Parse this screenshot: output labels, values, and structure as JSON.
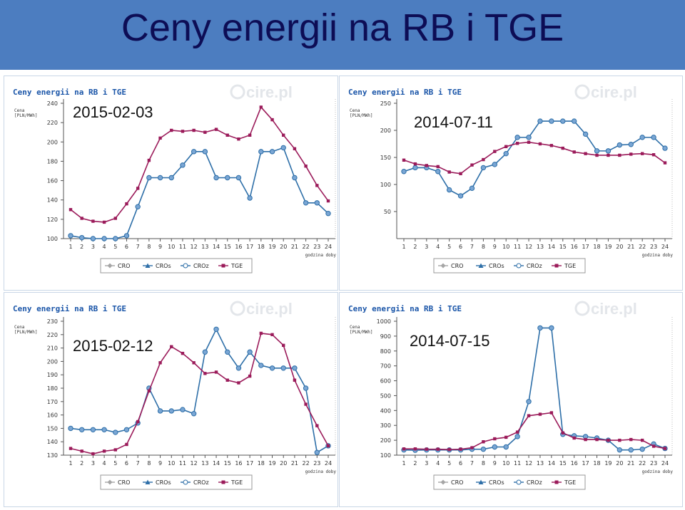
{
  "slide": {
    "title": "Ceny energii na RB i TGE",
    "header_color": "#4c7dc0"
  },
  "chart_common": {
    "chart_title": "Ceny energii na RB i TGE",
    "ylabel_line1": "Cena",
    "ylabel_line2": "[PLN/MWh]",
    "xlabel": "godzina doby",
    "watermark": "cire.pl",
    "x_hours": [
      1,
      2,
      3,
      4,
      5,
      6,
      7,
      8,
      9,
      10,
      11,
      12,
      13,
      14,
      15,
      16,
      17,
      18,
      19,
      20,
      21,
      22,
      23,
      24
    ],
    "legend": [
      "CRO",
      "CROs",
      "CROz",
      "TGE"
    ],
    "colors": {
      "CRO": "#a6a6a6",
      "CROs": "#2e6fa8",
      "CROz": "#2e6fa8",
      "TGE": "#9b1b5a",
      "title": "#1a55a8"
    }
  },
  "chart_data": [
    {
      "type": "line",
      "date_label": "2015-02-03",
      "x": [
        1,
        2,
        3,
        4,
        5,
        6,
        7,
        8,
        9,
        10,
        11,
        12,
        13,
        14,
        15,
        16,
        17,
        18,
        19,
        20,
        21,
        22,
        23,
        24
      ],
      "yticks": [
        100,
        120,
        140,
        160,
        180,
        200,
        220,
        240
      ],
      "ylim": [
        100,
        240
      ],
      "series": [
        {
          "name": "CROs",
          "values": [
            103,
            101,
            100,
            100,
            100,
            103,
            133,
            163,
            163,
            163,
            176,
            190,
            190,
            163,
            163,
            163,
            142,
            190,
            190,
            194,
            163,
            137,
            137,
            126
          ]
        },
        {
          "name": "TGE",
          "values": [
            130,
            121,
            118,
            117,
            121,
            136,
            152,
            181,
            204,
            212,
            211,
            212,
            210,
            213,
            207,
            203,
            207,
            236,
            223,
            207,
            193,
            175,
            155,
            139
          ]
        }
      ]
    },
    {
      "type": "line",
      "date_label": "2014-07-11",
      "x": [
        1,
        2,
        3,
        4,
        5,
        6,
        7,
        8,
        9,
        10,
        11,
        12,
        13,
        14,
        15,
        16,
        17,
        18,
        19,
        20,
        21,
        22,
        23,
        24
      ],
      "yticks": [
        50,
        100,
        150,
        200,
        250
      ],
      "ylim": [
        0,
        250
      ],
      "series": [
        {
          "name": "CROs",
          "values": [
            124,
            131,
            131,
            124,
            90,
            79,
            93,
            131,
            137,
            157,
            187,
            187,
            217,
            217,
            217,
            217,
            193,
            162,
            162,
            173,
            174,
            187,
            187,
            167
          ]
        },
        {
          "name": "TGE",
          "values": [
            145,
            138,
            135,
            133,
            123,
            120,
            136,
            146,
            161,
            170,
            176,
            178,
            175,
            172,
            167,
            160,
            157,
            154,
            154,
            154,
            156,
            157,
            155,
            140
          ]
        }
      ]
    },
    {
      "type": "line",
      "date_label": "2015-02-12",
      "x": [
        1,
        2,
        3,
        4,
        5,
        6,
        7,
        8,
        9,
        10,
        11,
        12,
        13,
        14,
        15,
        16,
        17,
        18,
        19,
        20,
        21,
        22,
        23,
        24
      ],
      "yticks": [
        130,
        140,
        150,
        160,
        170,
        180,
        190,
        200,
        210,
        220,
        230
      ],
      "ylim": [
        130,
        230
      ],
      "series": [
        {
          "name": "CROs",
          "values": [
            150,
            149,
            149,
            149,
            147,
            149,
            154,
            180,
            163,
            163,
            164,
            161,
            207,
            224,
            207,
            195,
            207,
            197,
            195,
            195,
            195,
            180,
            132,
            137
          ]
        },
        {
          "name": "TGE",
          "values": [
            135,
            133,
            131,
            133,
            134,
            138,
            155,
            178,
            199,
            211,
            206,
            199,
            191,
            192,
            186,
            184,
            189,
            221,
            220,
            212,
            186,
            168,
            152,
            137
          ]
        }
      ]
    },
    {
      "type": "line",
      "date_label": "2014-07-15",
      "x": [
        1,
        2,
        3,
        4,
        5,
        6,
        7,
        8,
        9,
        10,
        11,
        12,
        13,
        14,
        15,
        16,
        17,
        18,
        19,
        20,
        21,
        22,
        23,
        24
      ],
      "yticks": [
        100,
        200,
        300,
        400,
        500,
        600,
        700,
        800,
        900,
        1000
      ],
      "ylim": [
        100,
        1000
      ],
      "series": [
        {
          "name": "CROs",
          "values": [
            135,
            133,
            135,
            135,
            135,
            135,
            140,
            140,
            155,
            155,
            225,
            460,
            955,
            955,
            240,
            230,
            225,
            215,
            200,
            135,
            135,
            140,
            175,
            145
          ]
        },
        {
          "name": "TGE",
          "values": [
            142,
            142,
            140,
            140,
            138,
            140,
            150,
            190,
            210,
            220,
            255,
            365,
            375,
            385,
            250,
            215,
            205,
            205,
            200,
            200,
            205,
            200,
            160,
            145
          ]
        }
      ]
    }
  ]
}
